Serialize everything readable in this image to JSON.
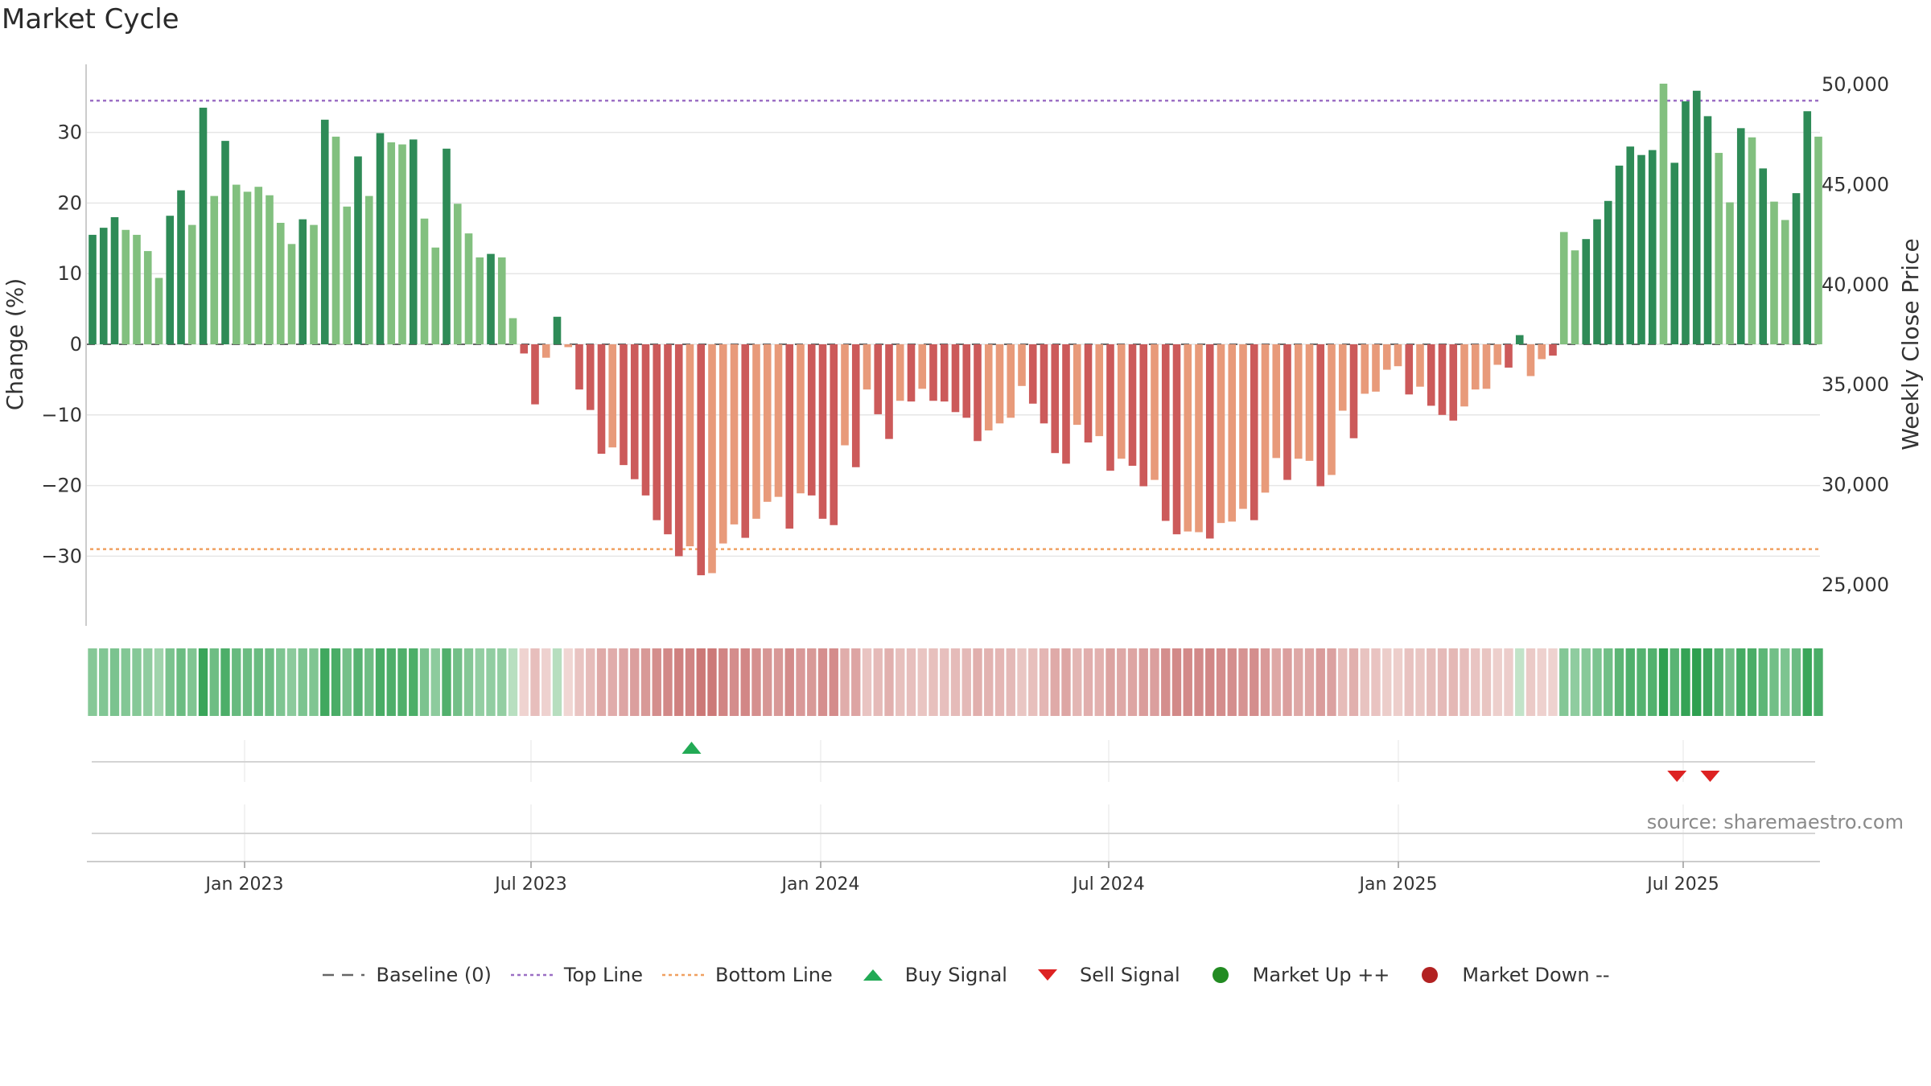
{
  "title": "Market Cycle",
  "source_note": "source: sharemaestro.com",
  "colors": {
    "strong_up": "#2e8b57",
    "up": "#82c07f",
    "strong_down": "#cc5a5a",
    "down": "#e89a7a",
    "top_line": "#9b6fc4",
    "bottom_line": "#f0a060",
    "buy": "#22aa55",
    "sell": "#dd2222",
    "market_up": "#228b22",
    "market_down": "#b22222",
    "baseline": "#666666"
  },
  "legend": [
    {
      "label": "Baseline (0)",
      "icon": "dash-line-icon",
      "color": "#666666"
    },
    {
      "label": "Top Line",
      "icon": "dotted-line-icon",
      "color": "#9b6fc4"
    },
    {
      "label": "Bottom Line",
      "icon": "dotted-line-icon",
      "color": "#f0a060"
    },
    {
      "label": "Buy Signal",
      "icon": "triangle-up-icon",
      "color": "#22aa55"
    },
    {
      "label": "Sell Signal",
      "icon": "triangle-down-icon",
      "color": "#dd2222"
    },
    {
      "label": "Market Up ++",
      "icon": "circle-icon",
      "color": "#228b22"
    },
    {
      "label": "Market Down --",
      "icon": "circle-icon",
      "color": "#b22222"
    }
  ],
  "chart_data": {
    "type": "bar",
    "ylabel": "Change (%)",
    "y2label": "Weekly Close Price",
    "ylim": [
      -40,
      40
    ],
    "y_ticks": [
      -30,
      -20,
      -10,
      0,
      10,
      20,
      30
    ],
    "y2_ticks": [
      "25,000",
      "30,000",
      "35,000",
      "40,000",
      "45,000",
      "50,000"
    ],
    "x_ticks": [
      "Jan 2023",
      "Jul 2023",
      "Jan 2024",
      "Jul 2024",
      "Jan 2025",
      "Jul 2025"
    ],
    "top_line": 34.5,
    "bottom_line": -29,
    "grid": true,
    "legend_position": "bottom",
    "x_start_week": 0,
    "values": [
      15.5,
      16.5,
      18,
      16.2,
      15.5,
      13.2,
      9.4,
      18.2,
      21.8,
      16.9,
      33.5,
      21,
      28.8,
      22.6,
      21.6,
      22.3,
      21.1,
      17.2,
      14.2,
      17.7,
      16.9,
      31.8,
      29.4,
      19.5,
      26.6,
      21,
      29.9,
      28.6,
      28.3,
      29,
      17.8,
      13.7,
      27.7,
      19.9,
      15.7,
      12.3,
      12.8,
      12.3,
      3.7,
      -1.3,
      -8.5,
      -1.9,
      3.9,
      -0.4,
      -6.4,
      -9.3,
      -15.5,
      -14.6,
      -17.1,
      -19.1,
      -21.4,
      -24.9,
      -26.9,
      -30,
      -28.6,
      -32.7,
      -32.4,
      -28.2,
      -25.5,
      -27.4,
      -24.7,
      -22.3,
      -21.6,
      -26.1,
      -21.1,
      -21.4,
      -24.7,
      -25.6,
      -14.3,
      -17.4,
      -6.4,
      -9.9,
      -13.4,
      -8,
      -8.1,
      -6.3,
      -8,
      -8.1,
      -9.6,
      -10.4,
      -13.7,
      -12.2,
      -11.2,
      -10.4,
      -5.9,
      -8.4,
      -11.2,
      -15.4,
      -16.9,
      -11.4,
      -13.9,
      -13,
      -17.9,
      -16.2,
      -17.2,
      -20.1,
      -19.2,
      -25,
      -26.9,
      -26.5,
      -26.6,
      -27.5,
      -25.3,
      -25.1,
      -23.3,
      -24.9,
      -21,
      -16.1,
      -19.2,
      -16.2,
      -16.5,
      -20.1,
      -18.5,
      -9.4,
      -13.3,
      -7,
      -6.7,
      -3.6,
      -3.1,
      -7.1,
      -6,
      -8.7,
      -10,
      -10.8,
      -8.8,
      -6.4,
      -6.3,
      -2.9,
      -3.3,
      1.3,
      -4.5,
      -2.1,
      -1.6,
      15.9,
      13.3,
      14.9,
      17.7,
      20.3,
      25.3,
      28,
      26.8,
      27.5,
      36.9,
      25.7,
      34.4,
      35.9,
      32.3,
      27.1,
      20.1,
      30.6,
      29.3,
      24.9,
      20.2,
      17.6,
      21.4,
      33,
      29.4
    ],
    "strength": [
      "s",
      "s",
      "s",
      "w",
      "w",
      "w",
      "w",
      "s",
      "s",
      "w",
      "s",
      "w",
      "s",
      "w",
      "w",
      "w",
      "w",
      "w",
      "w",
      "s",
      "w",
      "s",
      "w",
      "w",
      "s",
      "w",
      "s",
      "w",
      "w",
      "s",
      "w",
      "w",
      "s",
      "w",
      "w",
      "w",
      "s",
      "w",
      "w",
      "s",
      "s",
      "w",
      "s",
      "w",
      "s",
      "s",
      "s",
      "w",
      "s",
      "s",
      "s",
      "s",
      "s",
      "s",
      "w",
      "s",
      "w",
      "w",
      "w",
      "s",
      "w",
      "w",
      "w",
      "s",
      "w",
      "s",
      "s",
      "s",
      "w",
      "s",
      "w",
      "s",
      "s",
      "w",
      "s",
      "w",
      "s",
      "s",
      "s",
      "s",
      "s",
      "w",
      "w",
      "w",
      "w",
      "s",
      "s",
      "s",
      "s",
      "w",
      "s",
      "w",
      "s",
      "w",
      "s",
      "s",
      "w",
      "s",
      "s",
      "w",
      "w",
      "s",
      "w",
      "w",
      "w",
      "s",
      "w",
      "w",
      "s",
      "w",
      "w",
      "s",
      "w",
      "w",
      "s",
      "w",
      "w",
      "w",
      "w",
      "s",
      "w",
      "s",
      "s",
      "s",
      "w",
      "w",
      "w",
      "w",
      "s",
      "s",
      "w",
      "w",
      "s",
      "w",
      "w",
      "s",
      "s",
      "s",
      "s",
      "s",
      "s",
      "s",
      "w",
      "s",
      "s",
      "s",
      "s",
      "w",
      "w",
      "s",
      "w",
      "s",
      "w",
      "w",
      "s",
      "s",
      "w"
    ],
    "buy_signals": [
      54
    ],
    "sell_signals": [
      143,
      146
    ]
  }
}
